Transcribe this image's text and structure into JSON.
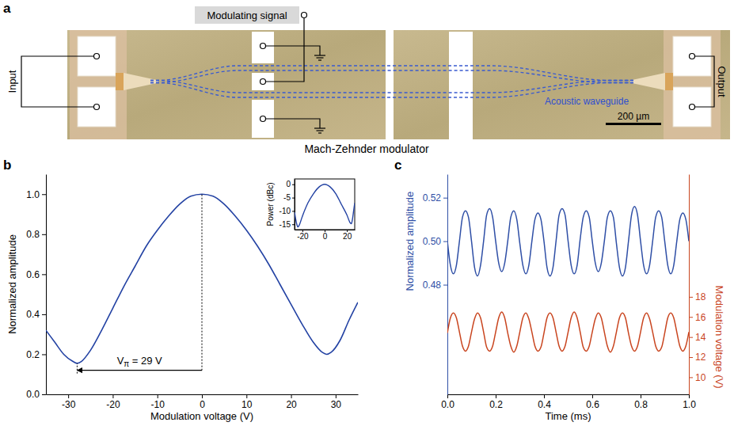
{
  "diagram": {
    "panel_label": "a",
    "modulating_signal": "Modulating signal",
    "input": "Input",
    "output": "Output",
    "waveguide": "Acoustic waveguide",
    "scale_bar": "200 µm",
    "caption": "Mach-Zehnder modulator"
  },
  "chart_data": [
    {
      "type": "line",
      "panel_label": "b",
      "xlabel": "Modulation voltage (V)",
      "ylabel": "Normalized amplitude",
      "xlim": [
        -35,
        35
      ],
      "ylim": [
        0,
        1.1
      ],
      "xticks": [
        -30,
        -20,
        -10,
        0,
        10,
        20,
        30
      ],
      "yticks": [
        {
          "value": 0,
          "label": "0.0"
        },
        0.2,
        0.4,
        0.6,
        0.8,
        {
          "value": 1,
          "label": "1.0"
        }
      ],
      "x": [
        -35,
        -33,
        -31,
        -29,
        -28,
        -27,
        -25,
        -22.5,
        -20,
        -17.5,
        -15,
        -12.5,
        -10,
        -7.5,
        -5,
        -2.5,
        0,
        2.5,
        5,
        7.5,
        10,
        12.5,
        15,
        17.5,
        20,
        22.5,
        25,
        27,
        28,
        29,
        31,
        33,
        35
      ],
      "series": [
        {
          "color": "#2342a3",
          "values": [
            0.32,
            0.26,
            0.2,
            0.165,
            0.155,
            0.165,
            0.22,
            0.32,
            0.43,
            0.54,
            0.64,
            0.74,
            0.82,
            0.89,
            0.95,
            0.99,
            1.0,
            0.99,
            0.95,
            0.89,
            0.82,
            0.74,
            0.65,
            0.55,
            0.45,
            0.35,
            0.26,
            0.21,
            0.2,
            0.21,
            0.27,
            0.37,
            0.46
          ]
        }
      ],
      "annotation": {
        "text": "Vπ = 29 V",
        "from": 0,
        "to": -28,
        "y": 0.12
      }
    },
    {
      "type": "line",
      "ylabel": "Power (dBc)",
      "xlim": [
        -27,
        27
      ],
      "ylim": [
        -17,
        2
      ],
      "xticks": [
        -20,
        0,
        20
      ],
      "yticks": [
        -15,
        -10,
        -5,
        0
      ],
      "x": [
        -27,
        -26,
        -25,
        -24,
        -23,
        -20,
        -15,
        -10,
        -5,
        0,
        5,
        10,
        15,
        20,
        23,
        24,
        25,
        26,
        27
      ],
      "series": [
        {
          "color": "#2342a3",
          "values": [
            -10.5,
            -13,
            -15,
            -16,
            -15.5,
            -12,
            -7,
            -3.5,
            -1,
            0,
            -1,
            -3.5,
            -7.5,
            -11.5,
            -14.5,
            -14.8,
            -13,
            -10,
            -7
          ]
        }
      ]
    },
    {
      "type": "line",
      "panel_label": "c",
      "xlabel": "Time (ms)",
      "ylabel": "Normalized amplitude",
      "y2label": "Modulation voltage (V)",
      "xlim": [
        0,
        1
      ],
      "ylim": [
        0.4296,
        0.5308
      ],
      "y2lim": [
        8.3,
        30.2
      ],
      "xticks": [
        {
          "value": 0,
          "label": "0.0"
        },
        0.2,
        0.4,
        0.6,
        0.8,
        {
          "value": 1,
          "label": "1.0"
        }
      ],
      "yticks": [
        0.48,
        {
          "value": 0.5,
          "label": "0.50"
        },
        0.52
      ],
      "y2ticks": [
        10,
        12,
        14,
        16,
        18
      ],
      "x": [
        0,
        0.0125,
        0.025,
        0.0375,
        0.05,
        0.0625,
        0.075,
        0.0875,
        0.1,
        0.1125,
        0.125,
        0.1375,
        0.15,
        0.1625,
        0.175,
        0.1875,
        0.2,
        0.2125,
        0.225,
        0.2375,
        0.25,
        0.2625,
        0.275,
        0.2875,
        0.3,
        0.3125,
        0.325,
        0.3375,
        0.35,
        0.3625,
        0.375,
        0.3875,
        0.4,
        0.4125,
        0.425,
        0.4375,
        0.45,
        0.4625,
        0.475,
        0.4875,
        0.5,
        0.5125,
        0.525,
        0.5375,
        0.55,
        0.5625,
        0.575,
        0.5875,
        0.6,
        0.6125,
        0.625,
        0.6375,
        0.65,
        0.6625,
        0.675,
        0.6875,
        0.7,
        0.7125,
        0.725,
        0.7375,
        0.75,
        0.7625,
        0.775,
        0.7875,
        0.8,
        0.8125,
        0.825,
        0.8375,
        0.85,
        0.8625,
        0.875,
        0.8875,
        0.9,
        0.9125,
        0.925,
        0.9375,
        0.95,
        0.9625,
        0.975,
        0.9875,
        1.0
      ],
      "series": [
        {
          "color": "#2f4fa6",
          "values": [
            0.5,
            0.489,
            0.485,
            0.489,
            0.5,
            0.511,
            0.514,
            0.511,
            0.5,
            0.488,
            0.484,
            0.489,
            0.5,
            0.512,
            0.515,
            0.511,
            0.5,
            0.49,
            0.486,
            0.49,
            0.5,
            0.511,
            0.514,
            0.51,
            0.499,
            0.489,
            0.485,
            0.489,
            0.5,
            0.51,
            0.513,
            0.51,
            0.5,
            0.488,
            0.484,
            0.488,
            0.5,
            0.512,
            0.515,
            0.512,
            0.5,
            0.489,
            0.485,
            0.489,
            0.501,
            0.511,
            0.514,
            0.511,
            0.5,
            0.49,
            0.486,
            0.49,
            0.5,
            0.511,
            0.514,
            0.511,
            0.499,
            0.488,
            0.484,
            0.488,
            0.5,
            0.512,
            0.516,
            0.512,
            0.5,
            0.489,
            0.485,
            0.489,
            0.5,
            0.511,
            0.514,
            0.511,
            0.5,
            0.489,
            0.485,
            0.489,
            0.5,
            0.51,
            0.513,
            0.51,
            0.5
          ]
        },
        {
          "color": "#c9451f",
          "axis": "y2",
          "values": [
            14.4,
            15.9,
            16.4,
            15.9,
            14.5,
            13.1,
            12.6,
            13.1,
            14.5,
            15.8,
            16.4,
            15.9,
            14.5,
            13.0,
            12.6,
            13.1,
            14.5,
            15.9,
            16.5,
            15.9,
            14.4,
            13.1,
            12.5,
            13.1,
            14.5,
            15.9,
            16.4,
            15.8,
            14.5,
            13.1,
            12.6,
            13.0,
            14.4,
            15.9,
            16.4,
            15.9,
            14.5,
            13.1,
            12.6,
            13.1,
            14.5,
            15.9,
            16.5,
            15.9,
            14.5,
            13.0,
            12.6,
            13.1,
            14.5,
            15.8,
            16.4,
            15.9,
            14.5,
            13.1,
            12.5,
            13.1,
            14.5,
            15.9,
            16.4,
            15.9,
            14.4,
            13.1,
            12.6,
            13.1,
            14.5,
            15.9,
            16.4,
            15.8,
            14.5,
            13.1,
            12.6,
            13.0,
            14.4,
            15.9,
            16.4,
            15.9,
            14.5,
            13.1,
            12.6,
            13.1,
            14.5
          ]
        }
      ]
    }
  ]
}
